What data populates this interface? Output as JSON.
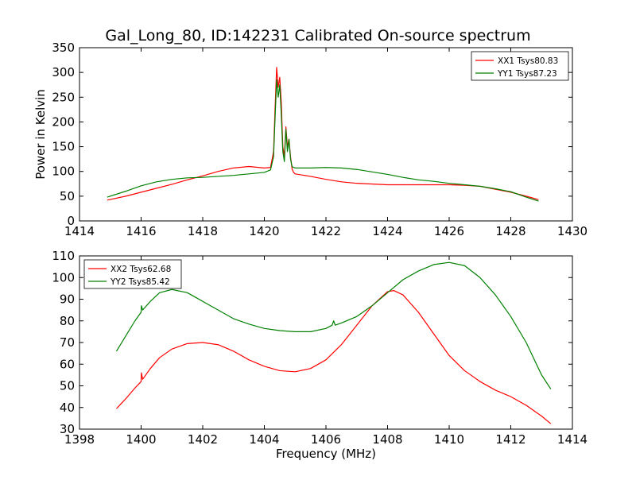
{
  "figure": {
    "title": "Gal_Long_80, ID:142231 Calibrated On-source spectrum"
  },
  "colors": {
    "series_red": "#ff0000",
    "series_green": "#008000"
  },
  "chart_data": [
    {
      "type": "line",
      "ylabel": "Power in Kelvin",
      "xlabel": "",
      "xlim": [
        1414,
        1430
      ],
      "ylim": [
        0,
        350
      ],
      "xticks": [
        "1414",
        "1416",
        "1418",
        "1420",
        "1422",
        "1424",
        "1426",
        "1428",
        "1430"
      ],
      "yticks": [
        "0",
        "50",
        "100",
        "150",
        "200",
        "250",
        "300",
        "350"
      ],
      "grid": false,
      "legend_position": "top-right",
      "series": [
        {
          "name": "XX1 Tsys80.83",
          "color": "#ff0000",
          "x": [
            1414.9,
            1415.5,
            1416,
            1416.5,
            1417,
            1417.5,
            1418,
            1418.5,
            1419,
            1419.5,
            1420,
            1420.2,
            1420.3,
            1420.35,
            1420.4,
            1420.45,
            1420.5,
            1420.55,
            1420.6,
            1420.65,
            1420.7,
            1420.75,
            1420.8,
            1420.85,
            1420.9,
            1420.95,
            1421.0,
            1421.5,
            1422,
            1422.5,
            1423,
            1424,
            1425,
            1426,
            1426.5,
            1427,
            1427.5,
            1428,
            1428.5,
            1428.9
          ],
          "y": [
            42,
            50,
            58,
            66,
            74,
            83,
            91,
            100,
            107,
            110,
            107,
            108,
            140,
            230,
            310,
            270,
            290,
            240,
            150,
            130,
            190,
            150,
            165,
            130,
            105,
            98,
            95,
            90,
            84,
            79,
            76,
            73,
            73,
            73,
            72,
            70,
            64,
            58,
            50,
            43
          ]
        },
        {
          "name": "YY1 Tsys87.23",
          "color": "#008000",
          "x": [
            1414.9,
            1415.5,
            1416,
            1416.5,
            1417,
            1417.5,
            1418,
            1418.5,
            1419,
            1419.5,
            1420,
            1420.2,
            1420.3,
            1420.35,
            1420.4,
            1420.45,
            1420.5,
            1420.55,
            1420.6,
            1420.65,
            1420.7,
            1420.75,
            1420.8,
            1420.85,
            1420.9,
            1420.95,
            1421.0,
            1421.5,
            1422,
            1422.5,
            1423,
            1423.5,
            1424,
            1424.5,
            1425,
            1425.5,
            1426,
            1426.5,
            1427,
            1427.5,
            1428,
            1428.5,
            1428.9
          ],
          "y": [
            48,
            60,
            71,
            79,
            84,
            87,
            88,
            90,
            92,
            95,
            98,
            103,
            130,
            210,
            285,
            250,
            275,
            215,
            140,
            120,
            185,
            140,
            165,
            125,
            110,
            108,
            107,
            107,
            108,
            107,
            104,
            99,
            94,
            88,
            83,
            80,
            76,
            73,
            70,
            65,
            59,
            48,
            40
          ]
        }
      ]
    },
    {
      "type": "line",
      "ylabel": "",
      "xlabel": "Frequency (MHz)",
      "xlim": [
        1398,
        1414
      ],
      "ylim": [
        30,
        110
      ],
      "xticks": [
        "1398",
        "1400",
        "1402",
        "1404",
        "1406",
        "1408",
        "1410",
        "1412",
        "1414"
      ],
      "yticks": [
        "30",
        "40",
        "50",
        "60",
        "70",
        "80",
        "90",
        "100",
        "110"
      ],
      "grid": false,
      "legend_position": "top-left",
      "series": [
        {
          "name": "XX2 Tsys62.68",
          "color": "#ff0000",
          "x": [
            1399.2,
            1399.5,
            1399.8,
            1400,
            1400.01,
            1400.05,
            1400.3,
            1400.6,
            1401,
            1401.5,
            1402,
            1402.5,
            1403,
            1403.5,
            1404,
            1404.5,
            1405,
            1405.5,
            1406,
            1406.5,
            1407,
            1407.5,
            1408,
            1408.2,
            1408.5,
            1409,
            1409.5,
            1410,
            1410.5,
            1411,
            1411.5,
            1412,
            1412.5,
            1413,
            1413.3
          ],
          "y": [
            39.5,
            44,
            49,
            52,
            56,
            53,
            58,
            63,
            67,
            69.5,
            70,
            69,
            66,
            62,
            59,
            57,
            56.5,
            58,
            62,
            69,
            78,
            87,
            93.5,
            94,
            92,
            84,
            74,
            64,
            57,
            52,
            48,
            45,
            41,
            36,
            32.5
          ]
        },
        {
          "name": "YY2 Tsys85.42",
          "color": "#008000",
          "x": [
            1399.2,
            1399.5,
            1399.8,
            1400,
            1400.01,
            1400.05,
            1400.3,
            1400.6,
            1401,
            1401.5,
            1402,
            1402.5,
            1403,
            1403.5,
            1404,
            1404.5,
            1405,
            1405.5,
            1406,
            1406.2,
            1406.25,
            1406.3,
            1406.5,
            1407,
            1407.5,
            1408,
            1408.5,
            1409,
            1409.5,
            1410,
            1410.5,
            1411,
            1411.5,
            1412,
            1412.5,
            1413,
            1413.3
          ],
          "y": [
            66,
            73,
            80,
            84,
            87,
            85,
            89,
            93,
            94.5,
            93,
            89,
            85,
            81,
            78.5,
            76.5,
            75.5,
            75,
            75,
            76.5,
            78,
            80,
            78,
            79,
            82,
            87,
            93,
            99,
            103,
            106,
            107,
            105.5,
            100,
            92,
            82,
            70,
            55,
            48.5
          ]
        }
      ]
    }
  ]
}
